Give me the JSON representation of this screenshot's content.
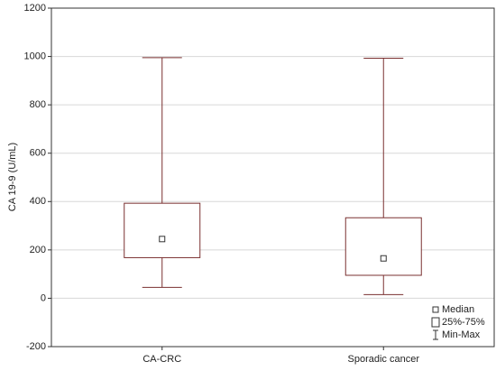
{
  "chart_data": {
    "type": "box",
    "y_label": "CA 19-9 (U/mL)",
    "categories": [
      "CA-CRC",
      "Sporadic cancer"
    ],
    "boxes": [
      {
        "min": 45,
        "q1": 168,
        "median": 245,
        "q3": 393,
        "max": 995
      },
      {
        "min": 15,
        "q1": 95,
        "median": 165,
        "q3": 333,
        "max": 993
      }
    ],
    "color": "#7a3030",
    "ylim": [
      -200,
      1200
    ],
    "yticks": [
      -200,
      0,
      200,
      400,
      600,
      800,
      1000,
      1200
    ],
    "grid": true,
    "legend": [
      "Median",
      "25%-75%",
      "Min-Max"
    ],
    "legend_position": "bottom-right"
  }
}
